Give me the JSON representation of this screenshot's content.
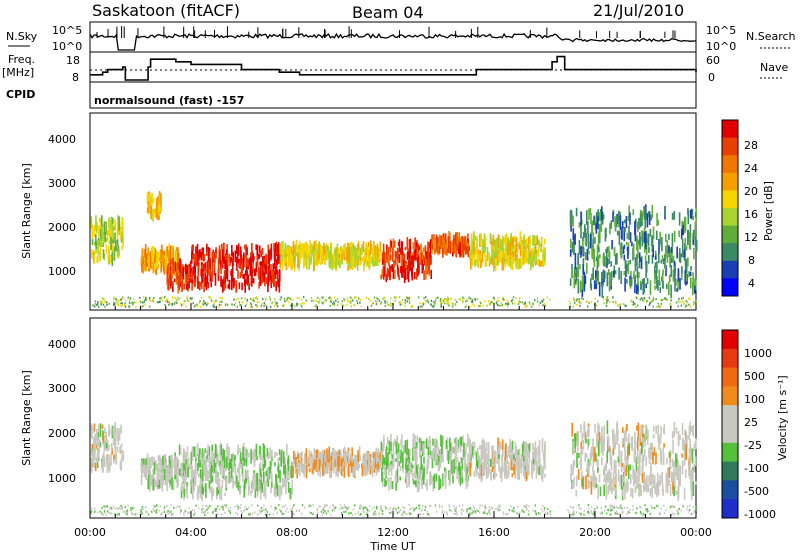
{
  "header": {
    "station": "Saskatoon (fitACF)",
    "beam": "Beam 04",
    "date": "21/Jul/2010"
  },
  "noise_panel": {
    "left_label": "N.Sky",
    "left_ticks": [
      "10^5",
      "10^0"
    ],
    "right_label": "N.Search",
    "right_ticks": [
      "10^5",
      "10^0"
    ]
  },
  "freq_panel": {
    "left_label_1": "Freq.",
    "left_label_2": "[MHz]",
    "left_ticks": [
      "18",
      "8"
    ],
    "right_label": "Nave",
    "right_ticks": [
      "60",
      "0"
    ]
  },
  "cpid": {
    "label": "CPID",
    "program": "normalsound (fast) -157"
  },
  "power_panel": {
    "ylabel": "Slant Range [km]",
    "yticks": [
      "1000",
      "2000",
      "3000",
      "4000"
    ],
    "colorbar_label": "Power [dB]",
    "colorbar_ticks": [
      "28",
      "24",
      "20",
      "16",
      "12",
      "8",
      "4"
    ],
    "colors": [
      "#0000ff",
      "#1a3fb5",
      "#3a8a64",
      "#5fae3a",
      "#a8d432",
      "#f5d400",
      "#f5a000",
      "#f07800",
      "#e84000",
      "#e00000"
    ]
  },
  "velocity_panel": {
    "ylabel": "Slant Range [km]",
    "yticks": [
      "1000",
      "2000",
      "3000",
      "4000"
    ],
    "colorbar_label": "Velocity [m s⁻¹]",
    "colorbar_ticks": [
      "1000",
      "500",
      "100",
      "25",
      "-25",
      "-100",
      "-500",
      "-1000"
    ],
    "colors": [
      "#1e2ec8",
      "#1a4fa0",
      "#2e7a5a",
      "#55c03a",
      "#c8c8c0",
      "#c8c8c0",
      "#f08a1a",
      "#f06a10",
      "#e83a10",
      "#e00000"
    ]
  },
  "x_axis": {
    "ticks": [
      "00:00",
      "04:00",
      "08:00",
      "12:00",
      "16:00",
      "20:00",
      "00:00"
    ],
    "label": "Time UT"
  },
  "chart_data": [
    {
      "type": "line",
      "title": "Saskatoon (fitACF)",
      "series": [
        {
          "name": "N.Sky"
        },
        {
          "name": "N.Search"
        }
      ],
      "yscale": "log",
      "ylim": [
        1,
        100000
      ],
      "x": [
        "00:00",
        "04:00",
        "08:00",
        "12:00",
        "16:00",
        "20:00",
        "00:00"
      ]
    },
    {
      "type": "line",
      "series": [
        {
          "name": "Freq.",
          "ylim": [
            8,
            18
          ],
          "x_hours": [
            0,
            0.5,
            0.7,
            1.3,
            1.4,
            2.3,
            2.4,
            3.4,
            4.0,
            6.0,
            7.5,
            8.3,
            13.5,
            15.3,
            18.3,
            18.5,
            18.8,
            24
          ],
          "values": [
            10,
            11,
            12,
            13,
            8,
            13,
            16,
            15,
            14,
            12,
            11,
            10,
            10,
            12,
            15,
            17,
            12,
            11
          ]
        },
        {
          "name": "Nave",
          "ylim": [
            0,
            60
          ],
          "values_hint": "dotted ~ constant"
        }
      ]
    },
    {
      "type": "heatmap",
      "ylabel": "Slant Range [km]",
      "ylim": [
        180,
        4600
      ],
      "x_hours": [
        0,
        24
      ],
      "colorbar": {
        "label": "Power [dB]",
        "range": [
          0,
          30
        ]
      },
      "regions": [
        {
          "t0": 0.0,
          "t1": 1.3,
          "r0": 1300,
          "r1": 2200,
          "power": 14
        },
        {
          "t0": 2.0,
          "t1": 3.5,
          "r0": 1100,
          "r1": 1500,
          "power": 20
        },
        {
          "t0": 2.2,
          "t1": 2.8,
          "r0": 2300,
          "r1": 2700,
          "power": 18
        },
        {
          "t0": 3.0,
          "t1": 4.0,
          "r0": 700,
          "r1": 1200,
          "power": 26
        },
        {
          "t0": 4.0,
          "t1": 7.5,
          "r0": 700,
          "r1": 1600,
          "power": 28
        },
        {
          "t0": 7.5,
          "t1": 11.5,
          "r0": 1200,
          "r1": 1600,
          "power": 16
        },
        {
          "t0": 11.5,
          "t1": 13.5,
          "r0": 900,
          "r1": 1700,
          "power": 26
        },
        {
          "t0": 13.5,
          "t1": 15.0,
          "r0": 1500,
          "r1": 1800,
          "power": 24
        },
        {
          "t0": 15.0,
          "t1": 18.0,
          "r0": 1200,
          "r1": 1800,
          "power": 16
        },
        {
          "t0": 19.0,
          "t1": 24.0,
          "r0": 600,
          "r1": 2400,
          "power": 8
        }
      ]
    },
    {
      "type": "heatmap",
      "ylabel": "Slant Range [km]",
      "ylim": [
        180,
        4600
      ],
      "x_hours": [
        0,
        24
      ],
      "colorbar": {
        "label": "Velocity [m s⁻¹]",
        "range": [
          -1000,
          1000
        ]
      },
      "regions": [
        {
          "t0": 0.0,
          "t1": 1.3,
          "r0": 1300,
          "r1": 2200,
          "velocity": 0
        },
        {
          "t0": 2.0,
          "t1": 3.5,
          "r0": 900,
          "r1": 1500,
          "velocity": -60
        },
        {
          "t0": 3.5,
          "t1": 8.0,
          "r0": 700,
          "r1": 1700,
          "velocity": -150
        },
        {
          "t0": 8.0,
          "t1": 11.5,
          "r0": 1200,
          "r1": 1600,
          "velocity": 150
        },
        {
          "t0": 11.5,
          "t1": 15.0,
          "r0": 900,
          "r1": 1900,
          "velocity": -150
        },
        {
          "t0": 15.0,
          "t1": 18.0,
          "r0": 1100,
          "r1": 1800,
          "velocity": 0
        },
        {
          "t0": 19.0,
          "t1": 24.0,
          "r0": 700,
          "r1": 2200,
          "velocity": 0
        }
      ]
    }
  ]
}
